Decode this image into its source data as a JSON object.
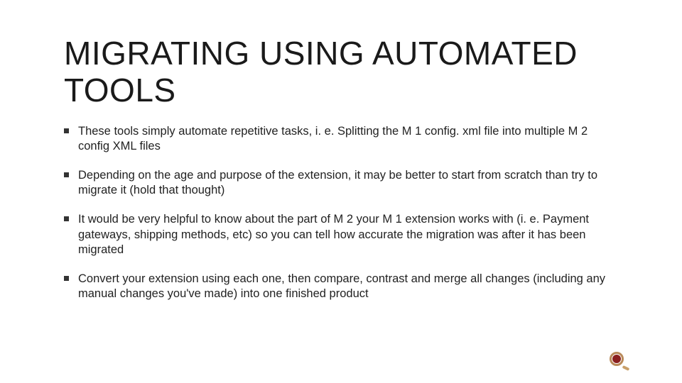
{
  "slide": {
    "title": "MIGRATING USING AUTOMATED TOOLS",
    "title_fontsize": 46,
    "title_color": "#1a1a1a",
    "body_fontsize": 16.5,
    "body_color": "#222222",
    "bullet_marker_color": "#333333",
    "background_color": "#ffffff",
    "bullets": [
      "These tools simply automate repetitive tasks, i. e. Splitting the M 1 config. xml file into multiple M 2 config XML files",
      "Depending on the age and purpose of the extension, it may be better to start from scratch than try to migrate it (hold that thought)",
      "It would be very helpful to know about the part of M 2 your M 1 extension works with (i. e. Payment gateways, shipping methods, etc) so you can tell how accurate the migration was after it has been migrated",
      "Convert your extension using each one, then compare, contrast and merge all changes (including any manual changes you've made) into one finished product"
    ],
    "ornament": {
      "ring_color": "#b98a5a",
      "inner_color": "#8a1f1f",
      "tail_color": "#c9a06a"
    }
  }
}
